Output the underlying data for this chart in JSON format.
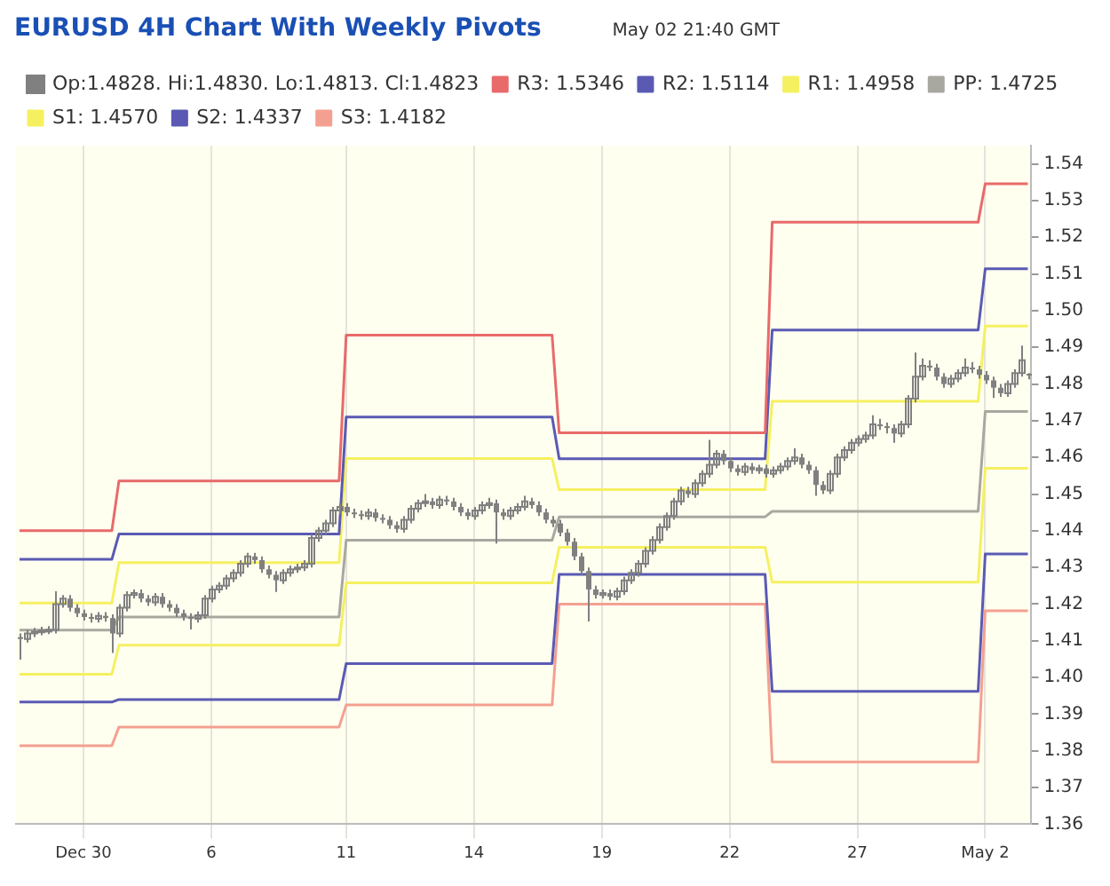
{
  "chart_data": {
    "type": "candlestick",
    "title": "EURUSD 4H Chart With Weekly Pivots",
    "subtitle": "May 02 21:40 GMT",
    "legend": "top left",
    "grid": "x",
    "marker": "none",
    "categories": [
      null,
      null,
      null,
      null,
      null,
      null,
      null,
      null,
      null,
      "Dec 30",
      null,
      null,
      null,
      null,
      null,
      null,
      null,
      null,
      null,
      null,
      null,
      null,
      null,
      null,
      null,
      null,
      null,
      "6",
      null,
      null,
      null,
      null,
      null,
      null,
      null,
      null,
      null,
      null,
      null,
      null,
      null,
      null,
      null,
      null,
      null,
      null,
      "11",
      null,
      null,
      null,
      null,
      null,
      null,
      null,
      null,
      null,
      null,
      null,
      null,
      null,
      null,
      null,
      null,
      null,
      "14",
      null,
      null,
      null,
      null,
      null,
      null,
      null,
      null,
      null,
      null,
      null,
      null,
      null,
      null,
      null,
      null,
      null,
      "19",
      null,
      null,
      null,
      null,
      null,
      null,
      null,
      null,
      null,
      null,
      null,
      null,
      null,
      null,
      null,
      null,
      null,
      "22",
      null,
      null,
      null,
      null,
      null,
      null,
      null,
      null,
      null,
      null,
      null,
      null,
      null,
      null,
      null,
      null,
      null,
      "27",
      null,
      null,
      null,
      null,
      null,
      null,
      null,
      null,
      null,
      null,
      null,
      null,
      null,
      null,
      null,
      null,
      null,
      "May 2",
      null,
      null,
      null,
      null,
      null,
      null
    ],
    "ylim": [
      1.36,
      1.545
    ],
    "yticks": [
      1.36,
      1.37,
      1.38,
      1.39,
      {
        "value": 1.4,
        "label": "1.40"
      },
      1.41,
      1.42,
      1.43,
      1.44,
      1.45,
      1.46,
      1.47,
      1.48,
      1.49,
      {
        "value": 1.5,
        "label": "1.50"
      },
      1.51,
      1.52,
      1.53,
      1.54
    ],
    "series": [
      {
        "name": "Op:1.4828. Hi:1.4830. Lo:1.4813. Cl:1.4823",
        "color": "#808080",
        "ohlc": [
          [
            1.411,
            1.412,
            1.4049,
            1.4105
          ],
          [
            1.4105,
            1.413,
            1.4095,
            1.412
          ],
          [
            1.412,
            1.4135,
            1.411,
            1.4125
          ],
          [
            1.4125,
            1.4138,
            1.4115,
            1.4128
          ],
          [
            1.4128,
            1.414,
            1.4118,
            1.413
          ],
          [
            1.413,
            1.4235,
            1.412,
            1.42
          ],
          [
            1.42,
            1.4225,
            1.419,
            1.4215
          ],
          [
            1.4215,
            1.4225,
            1.418,
            1.419
          ],
          [
            1.419,
            1.42,
            1.4165,
            1.4175
          ],
          [
            1.4175,
            1.4185,
            1.4155,
            1.4165
          ],
          [
            1.4165,
            1.4175,
            1.415,
            1.416
          ],
          [
            1.416,
            1.4178,
            1.415,
            1.4168
          ],
          [
            1.4168,
            1.4178,
            1.4152,
            1.4162
          ],
          [
            1.4162,
            1.4172,
            1.4067,
            1.412
          ],
          [
            1.412,
            1.42,
            1.411,
            1.419
          ],
          [
            1.419,
            1.4235,
            1.418,
            1.4225
          ],
          [
            1.4225,
            1.424,
            1.4215,
            1.423
          ],
          [
            1.423,
            1.424,
            1.4205,
            1.4215
          ],
          [
            1.4215,
            1.4225,
            1.4195,
            1.4205
          ],
          [
            1.4205,
            1.423,
            1.4195,
            1.422
          ],
          [
            1.422,
            1.423,
            1.419,
            1.42
          ],
          [
            1.42,
            1.421,
            1.418,
            1.419
          ],
          [
            1.419,
            1.42,
            1.4165,
            1.4175
          ],
          [
            1.4175,
            1.4185,
            1.4155,
            1.4165
          ],
          [
            1.4165,
            1.4175,
            1.4131,
            1.416
          ],
          [
            1.416,
            1.418,
            1.415,
            1.417
          ],
          [
            1.417,
            1.4225,
            1.416,
            1.4215
          ],
          [
            1.4215,
            1.425,
            1.4205,
            1.424
          ],
          [
            1.424,
            1.426,
            1.423,
            1.425
          ],
          [
            1.425,
            1.428,
            1.424,
            1.427
          ],
          [
            1.427,
            1.4295,
            1.426,
            1.4285
          ],
          [
            1.4285,
            1.432,
            1.4275,
            1.431
          ],
          [
            1.431,
            1.434,
            1.43,
            1.433
          ],
          [
            1.433,
            1.434,
            1.431,
            1.432
          ],
          [
            1.432,
            1.433,
            1.4285,
            1.4295
          ],
          [
            1.4295,
            1.4305,
            1.427,
            1.428
          ],
          [
            1.428,
            1.429,
            1.4233,
            1.4265
          ],
          [
            1.4265,
            1.4295,
            1.4255,
            1.4285
          ],
          [
            1.4285,
            1.4305,
            1.4275,
            1.4295
          ],
          [
            1.4295,
            1.431,
            1.4285,
            1.43
          ],
          [
            1.43,
            1.432,
            1.429,
            1.431
          ],
          [
            1.431,
            1.439,
            1.43,
            1.438
          ],
          [
            1.438,
            1.441,
            1.437,
            1.44
          ],
          [
            1.44,
            1.443,
            1.439,
            1.442
          ],
          [
            1.442,
            1.4465,
            1.441,
            1.4455
          ],
          [
            1.4455,
            1.4475,
            1.4445,
            1.4465
          ],
          [
            1.4465,
            1.4475,
            1.444,
            1.445
          ],
          [
            1.445,
            1.446,
            1.4435,
            1.4445
          ],
          [
            1.4445,
            1.4455,
            1.443,
            1.444
          ],
          [
            1.444,
            1.446,
            1.443,
            1.445
          ],
          [
            1.445,
            1.446,
            1.4425,
            1.4435
          ],
          [
            1.4435,
            1.4445,
            1.442,
            1.443
          ],
          [
            1.443,
            1.444,
            1.4405,
            1.4415
          ],
          [
            1.4415,
            1.4425,
            1.4395,
            1.4405
          ],
          [
            1.4405,
            1.444,
            1.4395,
            1.443
          ],
          [
            1.443,
            1.447,
            1.442,
            1.446
          ],
          [
            1.446,
            1.4485,
            1.445,
            1.4475
          ],
          [
            1.4475,
            1.45,
            1.4465,
            1.448
          ],
          [
            1.448,
            1.449,
            1.446,
            1.447
          ],
          [
            1.447,
            1.4495,
            1.446,
            1.4485
          ],
          [
            1.4485,
            1.4495,
            1.447,
            1.448
          ],
          [
            1.448,
            1.449,
            1.4455,
            1.4465
          ],
          [
            1.4465,
            1.4475,
            1.444,
            1.445
          ],
          [
            1.445,
            1.446,
            1.443,
            1.444
          ],
          [
            1.444,
            1.4465,
            1.443,
            1.4455
          ],
          [
            1.4455,
            1.448,
            1.4445,
            1.447
          ],
          [
            1.447,
            1.449,
            1.446,
            1.4475
          ],
          [
            1.4475,
            1.4485,
            1.4365,
            1.445
          ],
          [
            1.445,
            1.446,
            1.443,
            1.444
          ],
          [
            1.444,
            1.4465,
            1.443,
            1.4455
          ],
          [
            1.4455,
            1.4475,
            1.4445,
            1.4465
          ],
          [
            1.4465,
            1.4495,
            1.4455,
            1.448
          ],
          [
            1.448,
            1.449,
            1.446,
            1.447
          ],
          [
            1.447,
            1.448,
            1.444,
            1.445
          ],
          [
            1.445,
            1.446,
            1.442,
            1.443
          ],
          [
            1.443,
            1.444,
            1.441,
            1.442
          ],
          [
            1.442,
            1.443,
            1.4385,
            1.4395
          ],
          [
            1.4395,
            1.4405,
            1.436,
            1.437
          ],
          [
            1.437,
            1.438,
            1.432,
            1.433
          ],
          [
            1.433,
            1.434,
            1.428,
            1.429
          ],
          [
            1.429,
            1.43,
            1.4153,
            1.424
          ],
          [
            1.424,
            1.425,
            1.4215,
            1.4225
          ],
          [
            1.4225,
            1.424,
            1.4215,
            1.423
          ],
          [
            1.423,
            1.424,
            1.421,
            1.422
          ],
          [
            1.422,
            1.4245,
            1.421,
            1.4235
          ],
          [
            1.4235,
            1.4275,
            1.4225,
            1.4265
          ],
          [
            1.4265,
            1.4295,
            1.4255,
            1.4285
          ],
          [
            1.4285,
            1.432,
            1.4275,
            1.431
          ],
          [
            1.431,
            1.4355,
            1.43,
            1.4345
          ],
          [
            1.4345,
            1.4385,
            1.4335,
            1.4375
          ],
          [
            1.4375,
            1.442,
            1.4365,
            1.441
          ],
          [
            1.441,
            1.445,
            1.44,
            1.444
          ],
          [
            1.444,
            1.449,
            1.443,
            1.448
          ],
          [
            1.448,
            1.452,
            1.447,
            1.451
          ],
          [
            1.451,
            1.452,
            1.449,
            1.45
          ],
          [
            1.45,
            1.454,
            1.449,
            1.453
          ],
          [
            1.453,
            1.4565,
            1.452,
            1.4555
          ],
          [
            1.4555,
            1.4648,
            1.4545,
            1.458
          ],
          [
            1.458,
            1.462,
            1.457,
            1.461
          ],
          [
            1.461,
            1.462,
            1.458,
            1.459
          ],
          [
            1.459,
            1.46,
            1.456,
            1.457
          ],
          [
            1.457,
            1.458,
            1.455,
            1.456
          ],
          [
            1.456,
            1.4585,
            1.455,
            1.4575
          ],
          [
            1.4575,
            1.4585,
            1.4555,
            1.4565
          ],
          [
            1.4565,
            1.458,
            1.4555,
            1.457
          ],
          [
            1.457,
            1.458,
            1.4545,
            1.4555
          ],
          [
            1.4555,
            1.4575,
            1.4545,
            1.4565
          ],
          [
            1.4565,
            1.4585,
            1.4555,
            1.4575
          ],
          [
            1.4575,
            1.46,
            1.4565,
            1.459
          ],
          [
            1.459,
            1.4625,
            1.458,
            1.46
          ],
          [
            1.46,
            1.461,
            1.457,
            1.458
          ],
          [
            1.458,
            1.459,
            1.4555,
            1.4565
          ],
          [
            1.4565,
            1.4575,
            1.4495,
            1.4525
          ],
          [
            1.4525,
            1.4535,
            1.45,
            1.451
          ],
          [
            1.451,
            1.4565,
            1.45,
            1.4555
          ],
          [
            1.4555,
            1.461,
            1.4545,
            1.46
          ],
          [
            1.46,
            1.463,
            1.459,
            1.462
          ],
          [
            1.462,
            1.465,
            1.461,
            1.464
          ],
          [
            1.464,
            1.466,
            1.463,
            1.465
          ],
          [
            1.465,
            1.467,
            1.464,
            1.466
          ],
          [
            1.466,
            1.4715,
            1.465,
            1.469
          ],
          [
            1.469,
            1.4705,
            1.4675,
            1.4685
          ],
          [
            1.4685,
            1.4695,
            1.4665,
            1.468
          ],
          [
            1.468,
            1.469,
            1.464,
            1.4665
          ],
          [
            1.4665,
            1.47,
            1.4655,
            1.469
          ],
          [
            1.469,
            1.477,
            1.468,
            1.476
          ],
          [
            1.476,
            1.4886,
            1.475,
            1.482
          ],
          [
            1.482,
            1.487,
            1.481,
            1.485
          ],
          [
            1.485,
            1.4865,
            1.4835,
            1.4845
          ],
          [
            1.4845,
            1.4855,
            1.481,
            1.482
          ],
          [
            1.482,
            1.483,
            1.479,
            1.48
          ],
          [
            1.48,
            1.4825,
            1.479,
            1.4815
          ],
          [
            1.4815,
            1.484,
            1.4805,
            1.483
          ],
          [
            1.483,
            1.487,
            1.482,
            1.4845
          ],
          [
            1.4845,
            1.486,
            1.483,
            1.484
          ],
          [
            1.484,
            1.485,
            1.4815,
            1.4825
          ],
          [
            1.4825,
            1.4835,
            1.48,
            1.481
          ],
          [
            1.481,
            1.482,
            1.4762,
            1.479
          ],
          [
            1.479,
            1.48,
            1.4765,
            1.4775
          ],
          [
            1.4775,
            1.481,
            1.4765,
            1.48
          ],
          [
            1.48,
            1.484,
            1.479,
            1.483
          ],
          [
            1.483,
            1.4905,
            1.482,
            1.4865
          ],
          [
            1.4828,
            1.483,
            1.4813,
            1.4823
          ]
        ]
      },
      {
        "type": "line",
        "name": "R3: 1.5346",
        "color": "#e86a6a",
        "values": [
          1.44,
          1.44,
          1.44,
          1.44,
          1.44,
          1.44,
          1.44,
          1.44,
          1.44,
          1.44,
          1.44,
          1.44,
          1.44,
          1.44,
          1.4536,
          1.4536,
          1.4536,
          1.4536,
          1.4536,
          1.4536,
          1.4536,
          1.4536,
          1.4536,
          1.4536,
          1.4536,
          1.4536,
          1.4536,
          1.4536,
          1.4536,
          1.4536,
          1.4536,
          1.4536,
          1.4536,
          1.4536,
          1.4536,
          1.4536,
          1.4536,
          1.4536,
          1.4536,
          1.4536,
          1.4536,
          1.4536,
          1.4536,
          1.4536,
          1.4536,
          1.4536,
          1.4933,
          1.4933,
          1.4933,
          1.4933,
          1.4933,
          1.4933,
          1.4933,
          1.4933,
          1.4933,
          1.4933,
          1.4933,
          1.4933,
          1.4933,
          1.4933,
          1.4933,
          1.4933,
          1.4933,
          1.4933,
          1.4933,
          1.4933,
          1.4933,
          1.4933,
          1.4933,
          1.4933,
          1.4933,
          1.4933,
          1.4933,
          1.4933,
          1.4933,
          1.4933,
          1.4667,
          1.4667,
          1.4667,
          1.4667,
          1.4667,
          1.4667,
          1.4667,
          1.4667,
          1.4667,
          1.4667,
          1.4667,
          1.4667,
          1.4667,
          1.4667,
          1.4667,
          1.4667,
          1.4667,
          1.4667,
          1.4667,
          1.4667,
          1.4667,
          1.4667,
          1.4667,
          1.4667,
          1.4667,
          1.4667,
          1.4667,
          1.4667,
          1.4667,
          1.4667,
          1.5241,
          1.5241,
          1.5241,
          1.5241,
          1.5241,
          1.5241,
          1.5241,
          1.5241,
          1.5241,
          1.5241,
          1.5241,
          1.5241,
          1.5241,
          1.5241,
          1.5241,
          1.5241,
          1.5241,
          1.5241,
          1.5241,
          1.5241,
          1.5241,
          1.5241,
          1.5241,
          1.5241,
          1.5241,
          1.5241,
          1.5241,
          1.5241,
          1.5241,
          1.5241,
          1.5346,
          1.5346,
          1.5346,
          1.5346,
          1.5346,
          1.5346,
          1.5346
        ]
      },
      {
        "type": "line",
        "name": "R2: 1.5114",
        "color": "#5a5ab4",
        "values": [
          1.4322,
          1.4322,
          1.4322,
          1.4322,
          1.4322,
          1.4322,
          1.4322,
          1.4322,
          1.4322,
          1.4322,
          1.4322,
          1.4322,
          1.4322,
          1.4322,
          1.4391,
          1.4391,
          1.4391,
          1.4391,
          1.4391,
          1.4391,
          1.4391,
          1.4391,
          1.4391,
          1.4391,
          1.4391,
          1.4391,
          1.4391,
          1.4391,
          1.4391,
          1.4391,
          1.4391,
          1.4391,
          1.4391,
          1.4391,
          1.4391,
          1.4391,
          1.4391,
          1.4391,
          1.4391,
          1.4391,
          1.4391,
          1.4391,
          1.4391,
          1.4391,
          1.4391,
          1.4391,
          1.471,
          1.471,
          1.471,
          1.471,
          1.471,
          1.471,
          1.471,
          1.471,
          1.471,
          1.471,
          1.471,
          1.471,
          1.471,
          1.471,
          1.471,
          1.471,
          1.471,
          1.471,
          1.471,
          1.471,
          1.471,
          1.471,
          1.471,
          1.471,
          1.471,
          1.471,
          1.471,
          1.471,
          1.471,
          1.471,
          1.4596,
          1.4596,
          1.4596,
          1.4596,
          1.4596,
          1.4596,
          1.4596,
          1.4596,
          1.4596,
          1.4596,
          1.4596,
          1.4596,
          1.4596,
          1.4596,
          1.4596,
          1.4596,
          1.4596,
          1.4596,
          1.4596,
          1.4596,
          1.4596,
          1.4596,
          1.4596,
          1.4596,
          1.4596,
          1.4596,
          1.4596,
          1.4596,
          1.4596,
          1.4596,
          1.4947,
          1.4947,
          1.4947,
          1.4947,
          1.4947,
          1.4947,
          1.4947,
          1.4947,
          1.4947,
          1.4947,
          1.4947,
          1.4947,
          1.4947,
          1.4947,
          1.4947,
          1.4947,
          1.4947,
          1.4947,
          1.4947,
          1.4947,
          1.4947,
          1.4947,
          1.4947,
          1.4947,
          1.4947,
          1.4947,
          1.4947,
          1.4947,
          1.4947,
          1.4947,
          1.5114,
          1.5114,
          1.5114,
          1.5114,
          1.5114,
          1.5114,
          1.5114
        ]
      },
      {
        "type": "line",
        "name": "R1: 1.4958",
        "color": "#f5f060",
        "values": [
          1.4203,
          1.4203,
          1.4203,
          1.4203,
          1.4203,
          1.4203,
          1.4203,
          1.4203,
          1.4203,
          1.4203,
          1.4203,
          1.4203,
          1.4203,
          1.4203,
          1.4313,
          1.4313,
          1.4313,
          1.4313,
          1.4313,
          1.4313,
          1.4313,
          1.4313,
          1.4313,
          1.4313,
          1.4313,
          1.4313,
          1.4313,
          1.4313,
          1.4313,
          1.4313,
          1.4313,
          1.4313,
          1.4313,
          1.4313,
          1.4313,
          1.4313,
          1.4313,
          1.4313,
          1.4313,
          1.4313,
          1.4313,
          1.4313,
          1.4313,
          1.4313,
          1.4313,
          1.4313,
          1.4597,
          1.4597,
          1.4597,
          1.4597,
          1.4597,
          1.4597,
          1.4597,
          1.4597,
          1.4597,
          1.4597,
          1.4597,
          1.4597,
          1.4597,
          1.4597,
          1.4597,
          1.4597,
          1.4597,
          1.4597,
          1.4597,
          1.4597,
          1.4597,
          1.4597,
          1.4597,
          1.4597,
          1.4597,
          1.4597,
          1.4597,
          1.4597,
          1.4597,
          1.4597,
          1.4512,
          1.4512,
          1.4512,
          1.4512,
          1.4512,
          1.4512,
          1.4512,
          1.4512,
          1.4512,
          1.4512,
          1.4512,
          1.4512,
          1.4512,
          1.4512,
          1.4512,
          1.4512,
          1.4512,
          1.4512,
          1.4512,
          1.4512,
          1.4512,
          1.4512,
          1.4512,
          1.4512,
          1.4512,
          1.4512,
          1.4512,
          1.4512,
          1.4512,
          1.4512,
          1.4753,
          1.4753,
          1.4753,
          1.4753,
          1.4753,
          1.4753,
          1.4753,
          1.4753,
          1.4753,
          1.4753,
          1.4753,
          1.4753,
          1.4753,
          1.4753,
          1.4753,
          1.4753,
          1.4753,
          1.4753,
          1.4753,
          1.4753,
          1.4753,
          1.4753,
          1.4753,
          1.4753,
          1.4753,
          1.4753,
          1.4753,
          1.4753,
          1.4753,
          1.4753,
          1.4958,
          1.4958,
          1.4958,
          1.4958,
          1.4958,
          1.4958,
          1.4958
        ]
      },
      {
        "type": "line",
        "name": "PP: 1.4725",
        "color": "#a8a8a0",
        "values": [
          1.4129,
          1.4129,
          1.4129,
          1.4129,
          1.4129,
          1.4129,
          1.4129,
          1.4129,
          1.4129,
          1.4129,
          1.4129,
          1.4129,
          1.4129,
          1.4129,
          1.4165,
          1.4165,
          1.4165,
          1.4165,
          1.4165,
          1.4165,
          1.4165,
          1.4165,
          1.4165,
          1.4165,
          1.4165,
          1.4165,
          1.4165,
          1.4165,
          1.4165,
          1.4165,
          1.4165,
          1.4165,
          1.4165,
          1.4165,
          1.4165,
          1.4165,
          1.4165,
          1.4165,
          1.4165,
          1.4165,
          1.4165,
          1.4165,
          1.4165,
          1.4165,
          1.4165,
          1.4165,
          1.4374,
          1.4374,
          1.4374,
          1.4374,
          1.4374,
          1.4374,
          1.4374,
          1.4374,
          1.4374,
          1.4374,
          1.4374,
          1.4374,
          1.4374,
          1.4374,
          1.4374,
          1.4374,
          1.4374,
          1.4374,
          1.4374,
          1.4374,
          1.4374,
          1.4374,
          1.4374,
          1.4374,
          1.4374,
          1.4374,
          1.4374,
          1.4374,
          1.4374,
          1.4374,
          1.4438,
          1.4438,
          1.4438,
          1.4438,
          1.4438,
          1.4438,
          1.4438,
          1.4438,
          1.4438,
          1.4438,
          1.4438,
          1.4438,
          1.4438,
          1.4438,
          1.4438,
          1.4438,
          1.4438,
          1.4438,
          1.4438,
          1.4438,
          1.4438,
          1.4438,
          1.4438,
          1.4438,
          1.4438,
          1.4438,
          1.4438,
          1.4438,
          1.4438,
          1.4438,
          1.4453,
          1.4453,
          1.4453,
          1.4453,
          1.4453,
          1.4453,
          1.4453,
          1.4453,
          1.4453,
          1.4453,
          1.4453,
          1.4453,
          1.4453,
          1.4453,
          1.4453,
          1.4453,
          1.4453,
          1.4453,
          1.4453,
          1.4453,
          1.4453,
          1.4453,
          1.4453,
          1.4453,
          1.4453,
          1.4453,
          1.4453,
          1.4453,
          1.4453,
          1.4453,
          1.4725,
          1.4725,
          1.4725,
          1.4725,
          1.4725,
          1.4725,
          1.4725
        ]
      },
      {
        "type": "line",
        "name": "S1: 1.4570",
        "color": "#f5f060",
        "values": [
          1.4009,
          1.4009,
          1.4009,
          1.4009,
          1.4009,
          1.4009,
          1.4009,
          1.4009,
          1.4009,
          1.4009,
          1.4009,
          1.4009,
          1.4009,
          1.4009,
          1.4088,
          1.4088,
          1.4088,
          1.4088,
          1.4088,
          1.4088,
          1.4088,
          1.4088,
          1.4088,
          1.4088,
          1.4088,
          1.4088,
          1.4088,
          1.4088,
          1.4088,
          1.4088,
          1.4088,
          1.4088,
          1.4088,
          1.4088,
          1.4088,
          1.4088,
          1.4088,
          1.4088,
          1.4088,
          1.4088,
          1.4088,
          1.4088,
          1.4088,
          1.4088,
          1.4088,
          1.4088,
          1.4258,
          1.4258,
          1.4258,
          1.4258,
          1.4258,
          1.4258,
          1.4258,
          1.4258,
          1.4258,
          1.4258,
          1.4258,
          1.4258,
          1.4258,
          1.4258,
          1.4258,
          1.4258,
          1.4258,
          1.4258,
          1.4258,
          1.4258,
          1.4258,
          1.4258,
          1.4258,
          1.4258,
          1.4258,
          1.4258,
          1.4258,
          1.4258,
          1.4258,
          1.4258,
          1.4355,
          1.4355,
          1.4355,
          1.4355,
          1.4355,
          1.4355,
          1.4355,
          1.4355,
          1.4355,
          1.4355,
          1.4355,
          1.4355,
          1.4355,
          1.4355,
          1.4355,
          1.4355,
          1.4355,
          1.4355,
          1.4355,
          1.4355,
          1.4355,
          1.4355,
          1.4355,
          1.4355,
          1.4355,
          1.4355,
          1.4355,
          1.4355,
          1.4355,
          1.4355,
          1.426,
          1.426,
          1.426,
          1.426,
          1.426,
          1.426,
          1.426,
          1.426,
          1.426,
          1.426,
          1.426,
          1.426,
          1.426,
          1.426,
          1.426,
          1.426,
          1.426,
          1.426,
          1.426,
          1.426,
          1.426,
          1.426,
          1.426,
          1.426,
          1.426,
          1.426,
          1.426,
          1.426,
          1.426,
          1.426,
          1.457,
          1.457,
          1.457,
          1.457,
          1.457,
          1.457,
          1.457
        ]
      },
      {
        "type": "line",
        "name": "S2: 1.4337",
        "color": "#5a5ab4",
        "values": [
          1.3933,
          1.3933,
          1.3933,
          1.3933,
          1.3933,
          1.3933,
          1.3933,
          1.3933,
          1.3933,
          1.3933,
          1.3933,
          1.3933,
          1.3933,
          1.3933,
          1.394,
          1.394,
          1.394,
          1.394,
          1.394,
          1.394,
          1.394,
          1.394,
          1.394,
          1.394,
          1.394,
          1.394,
          1.394,
          1.394,
          1.394,
          1.394,
          1.394,
          1.394,
          1.394,
          1.394,
          1.394,
          1.394,
          1.394,
          1.394,
          1.394,
          1.394,
          1.394,
          1.394,
          1.394,
          1.394,
          1.394,
          1.394,
          1.4038,
          1.4038,
          1.4038,
          1.4038,
          1.4038,
          1.4038,
          1.4038,
          1.4038,
          1.4038,
          1.4038,
          1.4038,
          1.4038,
          1.4038,
          1.4038,
          1.4038,
          1.4038,
          1.4038,
          1.4038,
          1.4038,
          1.4038,
          1.4038,
          1.4038,
          1.4038,
          1.4038,
          1.4038,
          1.4038,
          1.4038,
          1.4038,
          1.4038,
          1.4038,
          1.4281,
          1.4281,
          1.4281,
          1.4281,
          1.4281,
          1.4281,
          1.4281,
          1.4281,
          1.4281,
          1.4281,
          1.4281,
          1.4281,
          1.4281,
          1.4281,
          1.4281,
          1.4281,
          1.4281,
          1.4281,
          1.4281,
          1.4281,
          1.4281,
          1.4281,
          1.4281,
          1.4281,
          1.4281,
          1.4281,
          1.4281,
          1.4281,
          1.4281,
          1.4281,
          1.3962,
          1.3962,
          1.3962,
          1.3962,
          1.3962,
          1.3962,
          1.3962,
          1.3962,
          1.3962,
          1.3962,
          1.3962,
          1.3962,
          1.3962,
          1.3962,
          1.3962,
          1.3962,
          1.3962,
          1.3962,
          1.3962,
          1.3962,
          1.3962,
          1.3962,
          1.3962,
          1.3962,
          1.3962,
          1.3962,
          1.3962,
          1.3962,
          1.3962,
          1.3962,
          1.4337,
          1.4337,
          1.4337,
          1.4337,
          1.4337,
          1.4337,
          1.4337
        ]
      },
      {
        "type": "line",
        "name": "S3: 1.4182",
        "color": "#f4a090",
        "values": [
          1.3814,
          1.3814,
          1.3814,
          1.3814,
          1.3814,
          1.3814,
          1.3814,
          1.3814,
          1.3814,
          1.3814,
          1.3814,
          1.3814,
          1.3814,
          1.3814,
          1.3865,
          1.3865,
          1.3865,
          1.3865,
          1.3865,
          1.3865,
          1.3865,
          1.3865,
          1.3865,
          1.3865,
          1.3865,
          1.3865,
          1.3865,
          1.3865,
          1.3865,
          1.3865,
          1.3865,
          1.3865,
          1.3865,
          1.3865,
          1.3865,
          1.3865,
          1.3865,
          1.3865,
          1.3865,
          1.3865,
          1.3865,
          1.3865,
          1.3865,
          1.3865,
          1.3865,
          1.3865,
          1.3925,
          1.3925,
          1.3925,
          1.3925,
          1.3925,
          1.3925,
          1.3925,
          1.3925,
          1.3925,
          1.3925,
          1.3925,
          1.3925,
          1.3925,
          1.3925,
          1.3925,
          1.3925,
          1.3925,
          1.3925,
          1.3925,
          1.3925,
          1.3925,
          1.3925,
          1.3925,
          1.3925,
          1.3925,
          1.3925,
          1.3925,
          1.3925,
          1.3925,
          1.3925,
          1.42,
          1.42,
          1.42,
          1.42,
          1.42,
          1.42,
          1.42,
          1.42,
          1.42,
          1.42,
          1.42,
          1.42,
          1.42,
          1.42,
          1.42,
          1.42,
          1.42,
          1.42,
          1.42,
          1.42,
          1.42,
          1.42,
          1.42,
          1.42,
          1.42,
          1.42,
          1.42,
          1.42,
          1.42,
          1.42,
          1.377,
          1.377,
          1.377,
          1.377,
          1.377,
          1.377,
          1.377,
          1.377,
          1.377,
          1.377,
          1.377,
          1.377,
          1.377,
          1.377,
          1.377,
          1.377,
          1.377,
          1.377,
          1.377,
          1.377,
          1.377,
          1.377,
          1.377,
          1.377,
          1.377,
          1.377,
          1.377,
          1.377,
          1.377,
          1.377,
          1.4182,
          1.4182,
          1.4182,
          1.4182,
          1.4182,
          1.4182,
          1.4182
        ]
      }
    ]
  }
}
